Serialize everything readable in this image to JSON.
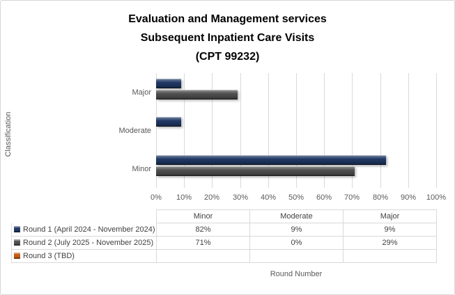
{
  "chart": {
    "title_lines": [
      "Evaluation and Management services",
      "Subsequent Inpatient Care Visits",
      "(CPT 99232)"
    ],
    "x_axis_title": "Round Number",
    "y_axis_title": "Classification"
  },
  "chart_data": {
    "type": "bar",
    "orientation": "horizontal",
    "title": "Evaluation and Management services Subsequent Inpatient Care Visits (CPT 99232)",
    "categories": [
      "Major",
      "Moderate",
      "Minor"
    ],
    "series": [
      {
        "name": "Round 1 (April 2024 - November 2024)",
        "color": "#203864",
        "values": [
          9,
          9,
          82
        ]
      },
      {
        "name": "Round 2 (July 2025 - November 2025)",
        "color": "#4F4F4F",
        "values": [
          29,
          0,
          71
        ]
      },
      {
        "name": "Round 3 (TBD)",
        "color": "#C55A11",
        "values": [
          null,
          null,
          null
        ]
      }
    ],
    "value_suffix": "%",
    "xlabel": "Round Number",
    "ylabel": "Classification",
    "xlim": [
      0,
      100
    ],
    "x_ticks": [
      "0%",
      "10%",
      "20%",
      "30%",
      "40%",
      "50%",
      "60%",
      "70%",
      "80%",
      "90%",
      "100%"
    ],
    "grid": true,
    "legend_position": "bottom-table",
    "data_table": {
      "column_headers": [
        "Minor",
        "Moderate",
        "Major"
      ],
      "rows": [
        {
          "label": "Round 1 (April 2024 - November 2024)",
          "values": [
            "82%",
            "9%",
            "9%"
          ]
        },
        {
          "label": "Round 2 (July 2025 - November 2025)",
          "values": [
            "71%",
            "0%",
            "29%"
          ]
        },
        {
          "label": "Round 3 (TBD)",
          "values": [
            "",
            "",
            ""
          ]
        }
      ]
    }
  },
  "colors": {
    "bar_round1": "#203864",
    "bar_round2": "#4F4F4F",
    "bar_round3": "#C55A11",
    "gridline": "#D9D9D9",
    "axis_text": "#595959",
    "table_border": "#D9D9D9",
    "table_text": "#404040",
    "title_text": "#000000",
    "chart_border": "#D6D6D6",
    "background": "#FFFFFF"
  }
}
